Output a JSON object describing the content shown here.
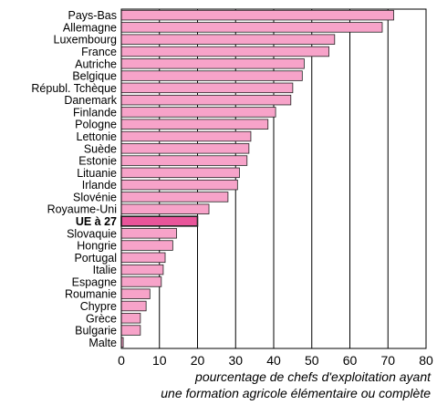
{
  "chart_data": {
    "type": "bar",
    "orientation": "horizontal",
    "categories": [
      "Pays-Bas",
      "Allemagne",
      "Luxembourg",
      "France",
      "Autriche",
      "Belgique",
      "Républ. Tchèque",
      "Danemark",
      "Finlande",
      "Pologne",
      "Lettonie",
      "Suède",
      "Estonie",
      "Lituanie",
      "Irlande",
      "Slovénie",
      "Royaume-Uni",
      "UE à 27",
      "Slovaquie",
      "Hongrie",
      "Portugal",
      "Italie",
      "Espagne",
      "Roumanie",
      "Chypre",
      "Grèce",
      "Bulgarie",
      "Malte"
    ],
    "values": [
      71.5,
      68.5,
      56,
      54.5,
      48,
      47.5,
      45,
      44.5,
      40.5,
      38.5,
      34,
      33.5,
      33,
      31,
      30.5,
      28,
      23,
      20,
      14.5,
      13.5,
      11.5,
      11,
      10.5,
      7.5,
      6.5,
      5,
      5,
      0.5
    ],
    "highlight": "UE à 27",
    "xlim": [
      0,
      80
    ],
    "xticks": [
      0,
      10,
      20,
      30,
      40,
      50,
      60,
      70,
      80
    ],
    "xlabel": [
      "pourcentage de chefs d'exploitation ayant",
      "une formation agricole élémentaire ou complète"
    ],
    "grid": "vertical",
    "colors": {
      "bar": "#f7a3c9",
      "bar_highlight": "#e8559a",
      "bar_outline": "#222222",
      "grid": "#000000"
    }
  }
}
